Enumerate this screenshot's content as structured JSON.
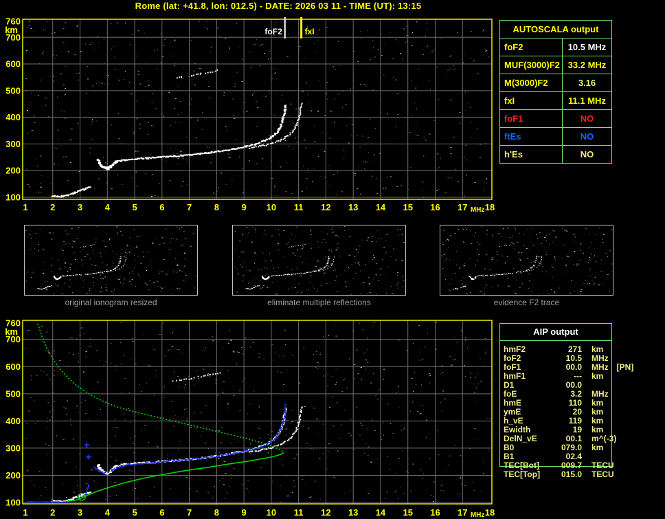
{
  "title": "Rome (lat: +41.8, lon: 012.5) - DATE: 2026 03 11 - TIME (UT): 13:15",
  "colors": {
    "yellow": "#ffff00",
    "pale_yellow": "#eeee88",
    "white": "#ffffff",
    "red": "#ff2020",
    "blue": "#1966ff",
    "table_green": "#6ee86e",
    "profile_green": "#00d400",
    "trace_blue": "#2233ee",
    "grid_gray": "#6e6e6e",
    "caption_gray": "#9f9f9f",
    "thumb_border": "#c0c0c0"
  },
  "autoscala": {
    "header": "AUTOSCALA output",
    "rows": [
      {
        "label": "foF2",
        "value": "10.5 MHz",
        "label_color": "#ffff00",
        "value_color": "#ffffff"
      },
      {
        "label": "MUF(3000)F2",
        "value": "33.2 MHz",
        "label_color": "#ffff00",
        "value_color": "#ffff00"
      },
      {
        "label": "M(3000)F2",
        "value": "3.16",
        "label_color": "#ffff00",
        "value_color": "#eeee88"
      },
      {
        "label": "fxI",
        "value": "11.1 MHz",
        "label_color": "#ffff00",
        "value_color": "#ffff00"
      },
      {
        "label": "foF1",
        "value": "NO",
        "label_color": "#ff2020",
        "value_color": "#ff2020"
      },
      {
        "label": "ftEs",
        "value": "NO",
        "label_color": "#1966ff",
        "value_color": "#1966ff"
      },
      {
        "label": "h'Es",
        "value": "NO",
        "label_color": "#eeee88",
        "value_color": "#eeee88"
      }
    ]
  },
  "aip": {
    "header": "AIP output",
    "rows": [
      {
        "label": "hmF2",
        "value": "271",
        "unit": "km",
        "extra": ""
      },
      {
        "label": "foF2",
        "value": "10.5",
        "unit": "MHz",
        "extra": ""
      },
      {
        "label": "foF1",
        "value": "00.0",
        "unit": "MHz",
        "extra": "[PN]"
      },
      {
        "label": "hmF1",
        "value": "---",
        "unit": "km",
        "extra": ""
      },
      {
        "label": "D1",
        "value": "00.0",
        "unit": "",
        "extra": ""
      },
      {
        "label": "foE",
        "value": "3.2",
        "unit": "MHz",
        "extra": ""
      },
      {
        "label": "hmE",
        "value": "110",
        "unit": "km",
        "extra": ""
      },
      {
        "label": "ymE",
        "value": "20",
        "unit": "km",
        "extra": ""
      },
      {
        "label": "h_vE",
        "value": "119",
        "unit": "km",
        "extra": ""
      },
      {
        "label": "Ewidth",
        "value": "19",
        "unit": "km",
        "extra": ""
      },
      {
        "label": "DelN_vE",
        "value": "00.1",
        "unit": "m^(-3)",
        "extra": ""
      },
      {
        "label": "B0",
        "value": "079.0",
        "unit": "km",
        "extra": ""
      },
      {
        "label": "B1",
        "value": "02.4",
        "unit": "",
        "extra": ""
      },
      {
        "label": "TEC[Bot]",
        "value": "009.7",
        "unit": "TECU",
        "extra": ""
      },
      {
        "label": "TEC[Top]",
        "value": "015.0",
        "unit": "TECU",
        "extra": ""
      }
    ]
  },
  "thumbnails": [
    {
      "caption": "original ionogram resized"
    },
    {
      "caption": "eliminate multiple reflections"
    },
    {
      "caption": "evidence F2 trace"
    }
  ],
  "chart_data": [
    {
      "type": "scatter",
      "name": "top-ionogram",
      "xlabel": "MHz",
      "ylabel": "km",
      "xlim": [
        1,
        18
      ],
      "ylim": [
        100,
        760
      ],
      "x_ticks": [
        "1",
        "2",
        "3",
        "4",
        "5",
        "6",
        "7",
        "8",
        "9",
        "10",
        "11",
        "12",
        "13",
        "14",
        "15",
        "16",
        "17",
        "18"
      ],
      "y_ticks": [
        "760",
        "700",
        "600",
        "500",
        "400",
        "300",
        "200",
        "100"
      ],
      "grid": true,
      "markers": [
        {
          "name": "foF2",
          "value_mhz": 10.5,
          "color": "#ffffff"
        },
        {
          "name": "fxI",
          "value_mhz": 11.1,
          "color": "#ffff00"
        }
      ],
      "series": [
        {
          "name": "E-trace",
          "points": [
            [
              1.95,
              108
            ],
            [
              2.15,
              106
            ],
            [
              2.35,
              106
            ],
            [
              2.55,
              111
            ],
            [
              2.75,
              119
            ],
            [
              2.95,
              127
            ],
            [
              3.15,
              134
            ],
            [
              3.35,
              141
            ]
          ]
        },
        {
          "name": "F2-hook",
          "points": [
            [
              3.62,
              242
            ],
            [
              3.68,
              230
            ],
            [
              3.76,
              221
            ],
            [
              3.86,
              214
            ],
            [
              3.98,
              212
            ],
            [
              4.08,
              217
            ],
            [
              4.18,
              227
            ],
            [
              4.28,
              236
            ]
          ]
        },
        {
          "name": "F2-O-trace",
          "points": [
            [
              4.28,
              236
            ],
            [
              4.6,
              243
            ],
            [
              5.0,
              247
            ],
            [
              5.4,
              249
            ],
            [
              5.8,
              252
            ],
            [
              6.2,
              255
            ],
            [
              6.6,
              258
            ],
            [
              7.0,
              262
            ],
            [
              7.4,
              266
            ],
            [
              7.8,
              271
            ],
            [
              8.2,
              277
            ],
            [
              8.6,
              284
            ],
            [
              9.0,
              292
            ],
            [
              9.4,
              302
            ],
            [
              9.7,
              313
            ],
            [
              9.95,
              326
            ],
            [
              10.12,
              340
            ],
            [
              10.24,
              356
            ],
            [
              10.33,
              374
            ],
            [
              10.39,
              392
            ],
            [
              10.43,
              410
            ],
            [
              10.46,
              428
            ],
            [
              10.48,
              447
            ]
          ]
        },
        {
          "name": "F2-X-trace",
          "points": [
            [
              9.2,
              288
            ],
            [
              9.6,
              295
            ],
            [
              10.0,
              304
            ],
            [
              10.35,
              318
            ],
            [
              10.6,
              334
            ],
            [
              10.78,
              352
            ],
            [
              10.9,
              372
            ],
            [
              10.98,
              394
            ],
            [
              11.03,
              416
            ],
            [
              11.06,
              438
            ],
            [
              11.08,
              455
            ]
          ]
        },
        {
          "name": "multiple-reflection",
          "points": [
            [
              6.35,
              547
            ],
            [
              6.7,
              553
            ],
            [
              7.05,
              559
            ],
            [
              7.4,
              566
            ],
            [
              7.75,
              572
            ],
            [
              8.1,
              580
            ]
          ]
        }
      ]
    },
    {
      "type": "scatter",
      "name": "bottom-ionogram-with-profile",
      "xlabel": "MHz",
      "ylabel": "km",
      "xlim": [
        1,
        18
      ],
      "ylim": [
        100,
        760
      ],
      "x_ticks": [
        "1",
        "2",
        "3",
        "4",
        "5",
        "6",
        "7",
        "8",
        "9",
        "10",
        "11",
        "12",
        "13",
        "14",
        "15",
        "16",
        "17",
        "18"
      ],
      "y_ticks": [
        "760",
        "700",
        "600",
        "500",
        "400",
        "300",
        "200",
        "100"
      ],
      "grid": true,
      "series": [
        {
          "name": "restored-trace-E-blue",
          "points": [
            [
              1.05,
              104
            ],
            [
              2.55,
              104
            ]
          ]
        },
        {
          "name": "restored-trace-rise-blue",
          "points": [
            [
              3.18,
              132
            ],
            [
              3.22,
              144
            ],
            [
              3.26,
              156
            ],
            [
              3.3,
              168
            ]
          ]
        },
        {
          "name": "restored-trace-stray-blue",
          "points": [
            [
              3.24,
              312
            ],
            [
              3.3,
              268
            ]
          ]
        },
        {
          "name": "restored-trace-F2-blue",
          "points": [
            [
              3.5,
              233
            ],
            [
              3.6,
              224
            ],
            [
              3.72,
              217
            ],
            [
              3.85,
              213
            ],
            [
              4.0,
              215
            ],
            [
              4.15,
              222
            ],
            [
              4.3,
              230
            ],
            [
              4.6,
              239
            ],
            [
              5.0,
              244
            ],
            [
              5.4,
              247
            ],
            [
              5.8,
              250
            ],
            [
              6.2,
              254
            ],
            [
              6.6,
              257
            ],
            [
              7.0,
              261
            ],
            [
              7.4,
              265
            ],
            [
              7.8,
              270
            ],
            [
              8.2,
              276
            ],
            [
              8.6,
              283
            ],
            [
              9.0,
              291
            ],
            [
              9.4,
              301
            ],
            [
              9.7,
              312
            ],
            [
              9.95,
              325
            ],
            [
              10.12,
              339
            ],
            [
              10.24,
              355
            ],
            [
              10.33,
              373
            ],
            [
              10.4,
              392
            ],
            [
              10.44,
              412
            ],
            [
              10.47,
              432
            ],
            [
              10.49,
              452
            ],
            [
              10.5,
              464
            ]
          ]
        },
        {
          "name": "profile-topside-green",
          "points": [
            [
              1.45,
              758
            ],
            [
              1.6,
              712
            ],
            [
              1.78,
              668
            ],
            [
              2.0,
              628
            ],
            [
              2.25,
              592
            ],
            [
              2.55,
              560
            ],
            [
              2.85,
              532
            ],
            [
              3.2,
              507
            ],
            [
              3.6,
              484
            ],
            [
              4.0,
              465
            ],
            [
              4.4,
              450
            ],
            [
              4.9,
              436
            ],
            [
              5.4,
              424
            ],
            [
              5.9,
              412
            ],
            [
              6.4,
              400
            ],
            [
              6.9,
              388
            ],
            [
              7.4,
              376
            ],
            [
              7.9,
              364
            ],
            [
              8.4,
              352
            ],
            [
              8.9,
              340
            ],
            [
              9.4,
              327
            ],
            [
              9.8,
              315
            ],
            [
              10.1,
              304
            ],
            [
              10.3,
              295
            ],
            [
              10.42,
              288
            ]
          ]
        },
        {
          "name": "profile-bottomside-green",
          "points": [
            [
              10.45,
              283
            ],
            [
              10.35,
              277
            ],
            [
              10.15,
              271
            ],
            [
              9.85,
              264
            ],
            [
              9.5,
              258
            ],
            [
              9.1,
              251
            ],
            [
              8.6,
              244
            ],
            [
              8.1,
              236
            ],
            [
              7.6,
              228
            ],
            [
              7.1,
              221
            ],
            [
              6.6,
              213
            ],
            [
              6.1,
              204
            ],
            [
              5.6,
              195
            ],
            [
              5.1,
              184
            ],
            [
              4.6,
              172
            ],
            [
              4.1,
              157
            ],
            [
              3.8,
              147
            ],
            [
              3.55,
              138
            ],
            [
              3.35,
              130
            ],
            [
              3.18,
              123
            ],
            [
              3.05,
              116
            ],
            [
              2.92,
              110
            ],
            [
              2.75,
              107
            ],
            [
              2.55,
              106
            ]
          ]
        },
        {
          "name": "E-valley-circle-green",
          "points": [
            [
              3.07,
              121
            ]
          ]
        }
      ]
    }
  ]
}
